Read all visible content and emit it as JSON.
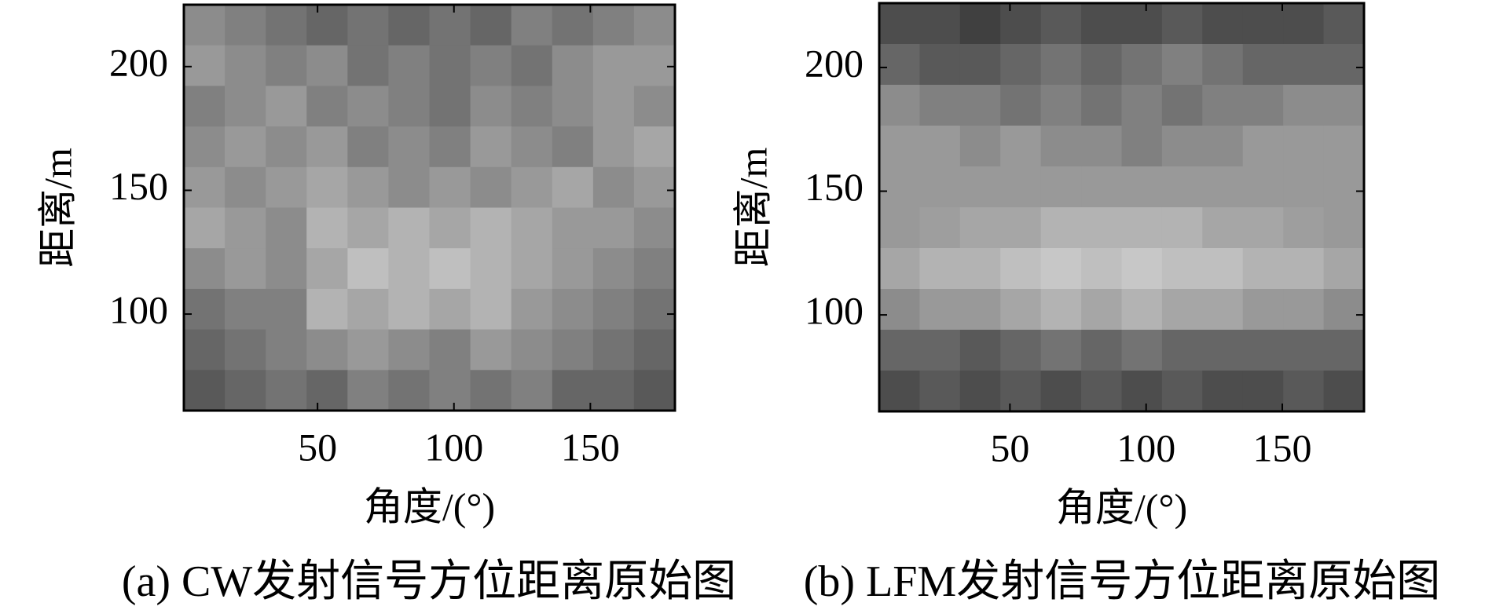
{
  "chart_data": [
    {
      "type": "heatmap",
      "caption": "(a) CW发射信号方位距离原始图",
      "xlabel": "角度/(°)",
      "ylabel": "距离/m",
      "xlim": [
        1,
        181
      ],
      "ylim": [
        61,
        225
      ],
      "xticks": [
        50,
        100,
        150
      ],
      "yticks": [
        100,
        150,
        200
      ],
      "colormap": "gray",
      "z": [
        [
          0.55,
          0.5,
          0.45,
          0.4,
          0.45,
          0.4,
          0.45,
          0.4,
          0.5,
          0.45,
          0.5,
          0.55
        ],
        [
          0.6,
          0.55,
          0.5,
          0.55,
          0.45,
          0.5,
          0.45,
          0.5,
          0.45,
          0.55,
          0.6,
          0.6
        ],
        [
          0.5,
          0.55,
          0.6,
          0.5,
          0.55,
          0.5,
          0.45,
          0.55,
          0.5,
          0.55,
          0.6,
          0.55
        ],
        [
          0.55,
          0.6,
          0.55,
          0.6,
          0.5,
          0.55,
          0.5,
          0.6,
          0.55,
          0.5,
          0.6,
          0.65
        ],
        [
          0.6,
          0.55,
          0.6,
          0.65,
          0.6,
          0.55,
          0.6,
          0.55,
          0.6,
          0.65,
          0.55,
          0.6
        ],
        [
          0.65,
          0.6,
          0.55,
          0.7,
          0.65,
          0.7,
          0.65,
          0.7,
          0.65,
          0.6,
          0.6,
          0.55
        ],
        [
          0.55,
          0.6,
          0.55,
          0.65,
          0.75,
          0.7,
          0.75,
          0.7,
          0.65,
          0.6,
          0.55,
          0.5
        ],
        [
          0.45,
          0.5,
          0.5,
          0.7,
          0.65,
          0.7,
          0.65,
          0.7,
          0.6,
          0.55,
          0.5,
          0.45
        ],
        [
          0.4,
          0.45,
          0.5,
          0.55,
          0.6,
          0.55,
          0.5,
          0.6,
          0.55,
          0.5,
          0.45,
          0.4
        ],
        [
          0.35,
          0.4,
          0.45,
          0.4,
          0.5,
          0.45,
          0.5,
          0.45,
          0.5,
          0.4,
          0.4,
          0.35
        ]
      ]
    },
    {
      "type": "heatmap",
      "caption": "(b) LFM发射信号方位距离原始图",
      "xlabel": "角度/(°)",
      "ylabel": "距离/m",
      "xlim": [
        2,
        180
      ],
      "ylim": [
        61,
        226
      ],
      "xticks": [
        50,
        100,
        150
      ],
      "yticks": [
        100,
        150,
        200
      ],
      "colormap": "gray",
      "z": [
        [
          0.3,
          0.3,
          0.25,
          0.3,
          0.35,
          0.3,
          0.3,
          0.35,
          0.3,
          0.3,
          0.3,
          0.35
        ],
        [
          0.4,
          0.35,
          0.35,
          0.4,
          0.45,
          0.4,
          0.45,
          0.5,
          0.45,
          0.4,
          0.4,
          0.4
        ],
        [
          0.55,
          0.5,
          0.5,
          0.45,
          0.5,
          0.45,
          0.5,
          0.45,
          0.5,
          0.5,
          0.55,
          0.55
        ],
        [
          0.6,
          0.6,
          0.55,
          0.6,
          0.55,
          0.55,
          0.5,
          0.55,
          0.55,
          0.6,
          0.6,
          0.6
        ],
        [
          0.6,
          0.6,
          0.6,
          0.6,
          0.6,
          0.6,
          0.6,
          0.6,
          0.6,
          0.6,
          0.6,
          0.6
        ],
        [
          0.6,
          0.62,
          0.65,
          0.65,
          0.7,
          0.7,
          0.7,
          0.7,
          0.65,
          0.65,
          0.62,
          0.6
        ],
        [
          0.65,
          0.7,
          0.7,
          0.75,
          0.78,
          0.75,
          0.78,
          0.75,
          0.75,
          0.7,
          0.7,
          0.65
        ],
        [
          0.55,
          0.6,
          0.6,
          0.65,
          0.7,
          0.65,
          0.7,
          0.65,
          0.65,
          0.6,
          0.6,
          0.55
        ],
        [
          0.4,
          0.4,
          0.35,
          0.4,
          0.45,
          0.4,
          0.45,
          0.4,
          0.4,
          0.4,
          0.4,
          0.4
        ],
        [
          0.3,
          0.35,
          0.3,
          0.35,
          0.3,
          0.35,
          0.3,
          0.35,
          0.3,
          0.3,
          0.35,
          0.3
        ]
      ]
    }
  ]
}
